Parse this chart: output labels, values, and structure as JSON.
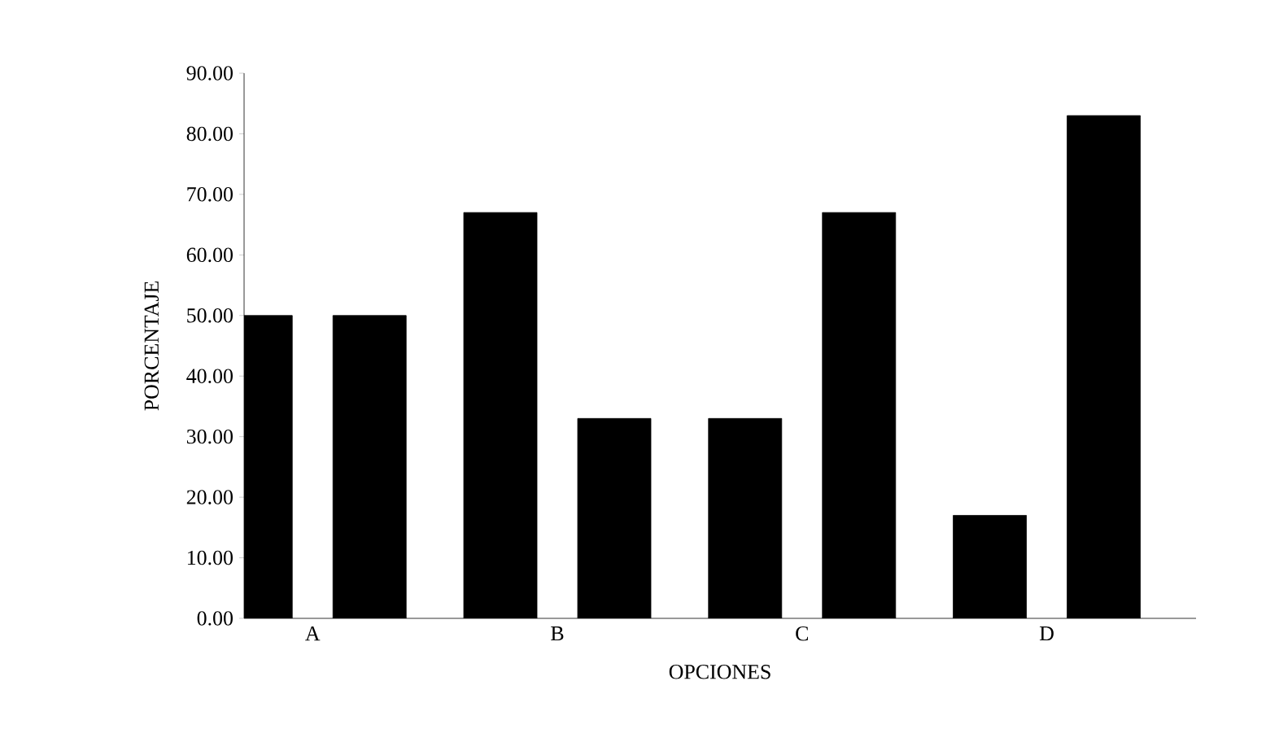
{
  "chart_data": {
    "type": "bar",
    "xlabel": "OPCIONES",
    "ylabel": "PORCENTAJE",
    "categories": [
      "A",
      "B",
      "C",
      "D"
    ],
    "series": [
      {
        "color": "#000000",
        "values": [
          50,
          67,
          33,
          17
        ]
      },
      {
        "color": "#000000",
        "values": [
          50,
          33,
          67,
          83
        ]
      }
    ],
    "ylim": [
      0,
      90
    ],
    "yticks": [
      {
        "value": 0,
        "label": "0.00"
      },
      {
        "value": 10,
        "label": "10.00"
      },
      {
        "value": 20,
        "label": "20.00"
      },
      {
        "value": 30,
        "label": "30.00"
      },
      {
        "value": 40,
        "label": "40.00"
      },
      {
        "value": 50,
        "label": "50.00"
      },
      {
        "value": 60,
        "label": "60.00"
      },
      {
        "value": 70,
        "label": "70.00"
      },
      {
        "value": 80,
        "label": "80.00"
      },
      {
        "value": 90,
        "label": "90.00"
      }
    ],
    "grid": false
  }
}
